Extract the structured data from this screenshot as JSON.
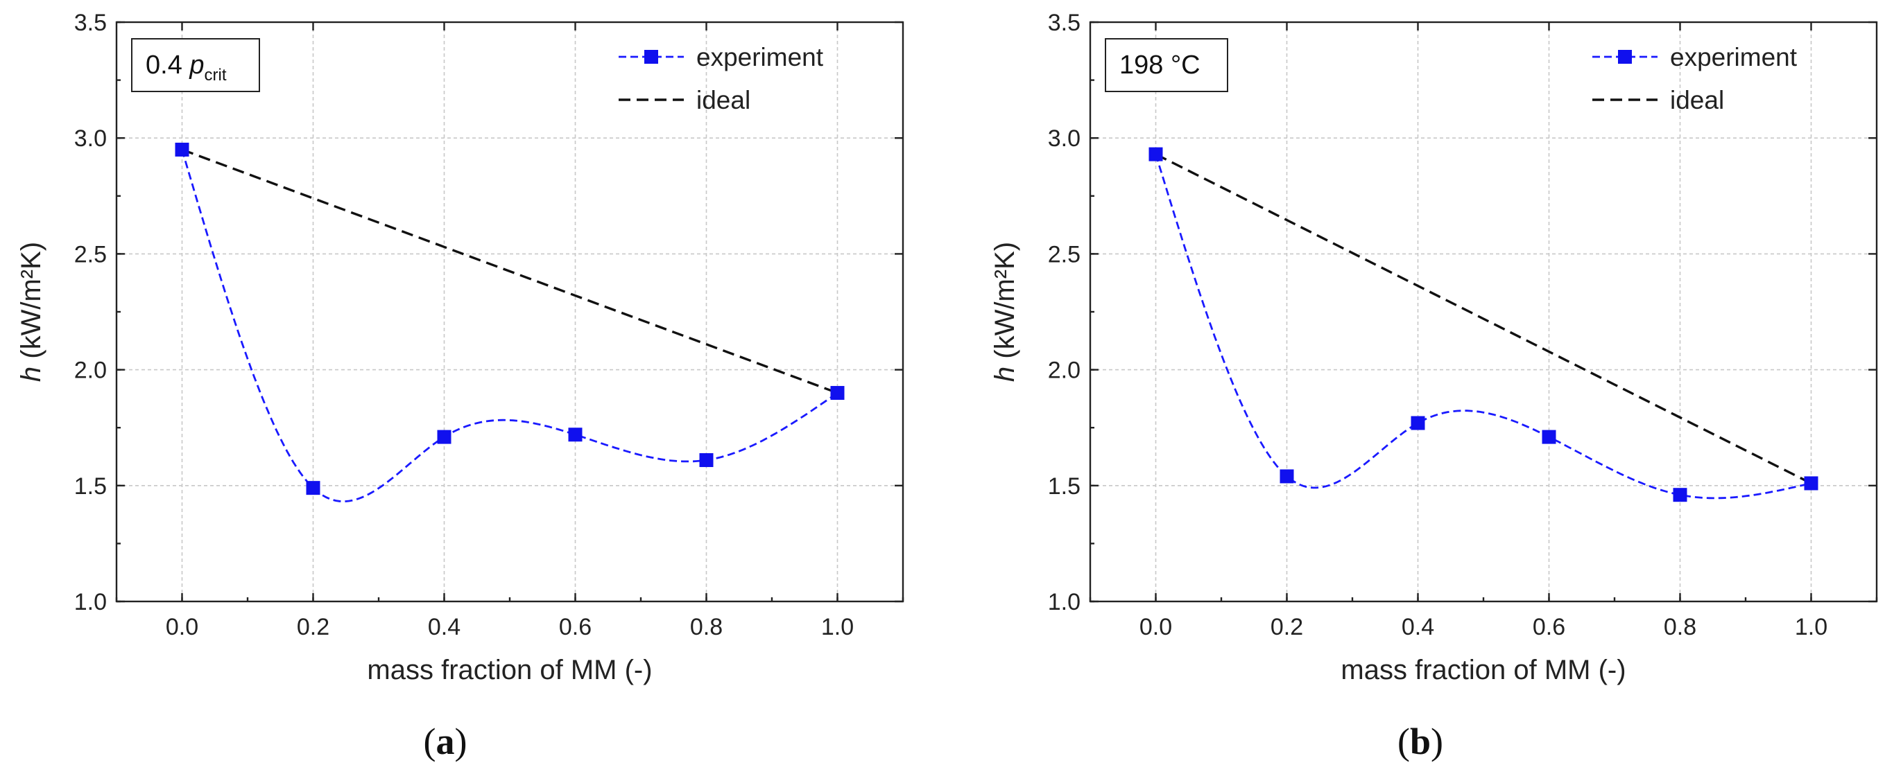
{
  "chart_data": [
    {
      "type": "line",
      "panel_label": "a",
      "inset_text": {
        "prefix": "0.4 ",
        "symbol": "p",
        "subscript": "crit"
      },
      "xlabel": "mass fraction of MM (-)",
      "ylabel": {
        "symbol": "h",
        "unit": " (kW/m²K)"
      },
      "xlim": [
        -0.1,
        1.1
      ],
      "ylim": [
        1.0,
        3.5
      ],
      "xticks": [
        "0.0",
        "0.2",
        "0.4",
        "0.6",
        "0.8",
        "1.0"
      ],
      "yticks": [
        "1.0",
        "1.5",
        "2.0",
        "2.5",
        "3.0",
        "3.5"
      ],
      "legend": [
        "experiment",
        "ideal"
      ],
      "legend_position": "top-right",
      "grid": true,
      "series": [
        {
          "name": "experiment",
          "x": [
            0.0,
            0.2,
            0.4,
            0.6,
            0.8,
            1.0
          ],
          "y": [
            2.95,
            1.49,
            1.71,
            1.72,
            1.61,
            1.9
          ]
        },
        {
          "name": "ideal",
          "x": [
            0.0,
            1.0
          ],
          "y": [
            2.95,
            1.9
          ]
        }
      ]
    },
    {
      "type": "line",
      "panel_label": "b",
      "inset_text": {
        "prefix": "198 °C",
        "symbol": "",
        "subscript": ""
      },
      "xlabel": "mass fraction of MM (-)",
      "ylabel": {
        "symbol": "h",
        "unit": " (kW/m²K)"
      },
      "xlim": [
        -0.1,
        1.1
      ],
      "ylim": [
        1.0,
        3.5
      ],
      "xticks": [
        "0.0",
        "0.2",
        "0.4",
        "0.6",
        "0.8",
        "1.0"
      ],
      "yticks": [
        "1.0",
        "1.5",
        "2.0",
        "2.5",
        "3.0",
        "3.5"
      ],
      "legend": [
        "experiment",
        "ideal"
      ],
      "legend_position": "top-right",
      "grid": true,
      "series": [
        {
          "name": "experiment",
          "x": [
            0.0,
            0.2,
            0.4,
            0.6,
            0.8,
            1.0
          ],
          "y": [
            2.93,
            1.54,
            1.77,
            1.71,
            1.46,
            1.51
          ]
        },
        {
          "name": "ideal",
          "x": [
            0.0,
            1.0
          ],
          "y": [
            2.93,
            1.51
          ]
        }
      ]
    }
  ]
}
